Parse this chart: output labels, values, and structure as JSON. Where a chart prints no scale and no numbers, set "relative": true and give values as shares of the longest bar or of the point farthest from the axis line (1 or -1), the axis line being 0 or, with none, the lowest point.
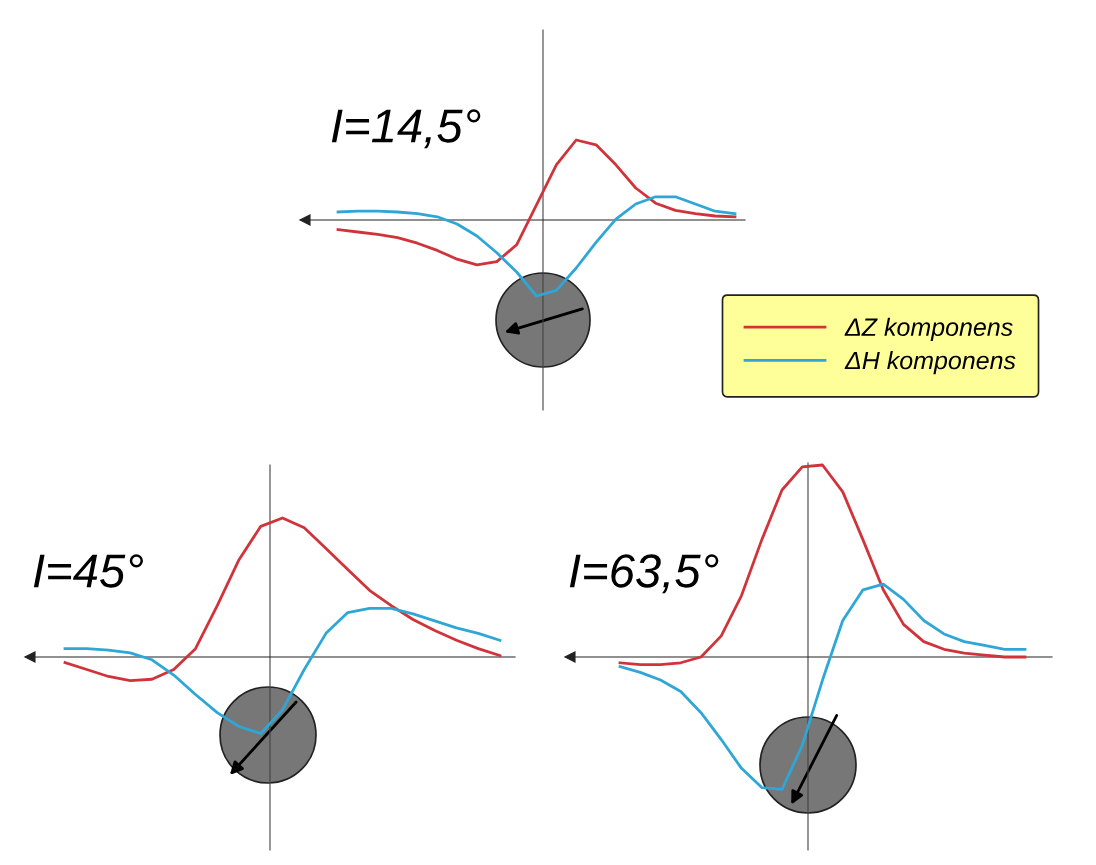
{
  "chart_data": [
    {
      "type": "line",
      "title": "I=14,5°",
      "relative": true,
      "legend": "right",
      "categories": [
        null,
        null,
        null,
        null,
        null,
        null,
        null,
        null,
        null,
        null,
        null,
        null,
        null,
        null,
        null,
        null,
        null,
        null,
        null,
        null,
        null
      ],
      "series": [
        {
          "name": "ΔZ komponens",
          "color": "#d0343a",
          "values": [
            -0.12,
            -0.15,
            -0.18,
            -0.22,
            -0.29,
            -0.38,
            -0.49,
            -0.56,
            -0.52,
            -0.31,
            0.19,
            0.69,
            1.0,
            0.94,
            0.69,
            0.4,
            0.21,
            0.12,
            0.08,
            0.05,
            0.04
          ]
        },
        {
          "name": "ΔH komponens",
          "color": "#2fa7d6",
          "values": [
            0.1,
            0.11,
            0.11,
            0.1,
            0.08,
            0.04,
            -0.05,
            -0.2,
            -0.41,
            -0.65,
            -0.95,
            -0.88,
            -0.6,
            -0.28,
            0.01,
            0.2,
            0.29,
            0.29,
            0.2,
            0.11,
            0.08
          ]
        }
      ]
    },
    {
      "type": "line",
      "title": "I=45°",
      "relative": true,
      "categories": [
        null,
        null,
        null,
        null,
        null,
        null,
        null,
        null,
        null,
        null,
        null,
        null,
        null,
        null,
        null,
        null,
        null,
        null,
        null,
        null,
        null
      ],
      "series": [
        {
          "color": "#d0343a",
          "values": [
            -0.04,
            -0.09,
            -0.14,
            -0.17,
            -0.16,
            -0.09,
            0.06,
            0.37,
            0.7,
            0.94,
            1.0,
            0.93,
            0.78,
            0.63,
            0.48,
            0.37,
            0.27,
            0.19,
            0.12,
            0.06,
            0.01
          ]
        },
        {
          "color": "#2fa7d6",
          "values": [
            0.06,
            0.06,
            0.05,
            0.03,
            -0.02,
            -0.13,
            -0.27,
            -0.4,
            -0.5,
            -0.55,
            -0.38,
            -0.09,
            0.17,
            0.32,
            0.35,
            0.35,
            0.31,
            0.26,
            0.21,
            0.17,
            0.12
          ]
        }
      ]
    },
    {
      "type": "line",
      "title": "I=63,5°",
      "relative": true,
      "categories": [
        null,
        null,
        null,
        null,
        null,
        null,
        null,
        null,
        null,
        null,
        null,
        null,
        null,
        null,
        null,
        null,
        null,
        null,
        null,
        null,
        null
      ],
      "series": [
        {
          "color": "#d0343a",
          "values": [
            -0.03,
            -0.04,
            -0.04,
            -0.03,
            0.0,
            0.11,
            0.32,
            0.61,
            0.87,
            0.99,
            1.0,
            0.86,
            0.61,
            0.35,
            0.17,
            0.08,
            0.04,
            0.02,
            0.01,
            0.0,
            0.0
          ]
        },
        {
          "color": "#2fa7d6",
          "values": [
            -0.05,
            -0.08,
            -0.12,
            -0.18,
            -0.29,
            -0.43,
            -0.58,
            -0.68,
            -0.69,
            -0.46,
            -0.12,
            0.19,
            0.35,
            0.38,
            0.3,
            0.19,
            0.12,
            0.08,
            0.06,
            0.04,
            0.04
          ]
        }
      ]
    }
  ]
}
